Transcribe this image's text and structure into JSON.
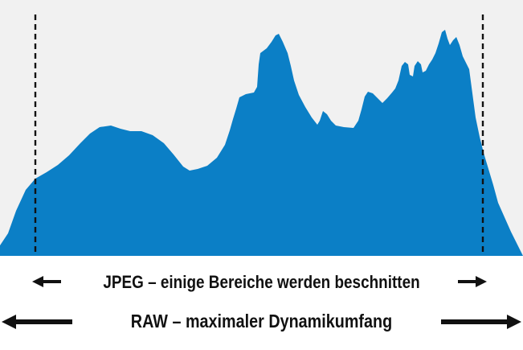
{
  "colors": {
    "histogram_fill": "#0b7fc6",
    "plot_background": "#f1f1f1",
    "marker_line": "#111111",
    "text": "#111111"
  },
  "labels": {
    "jpeg_range": "JPEG – einige Bereiche werden beschnitten",
    "raw_range": "RAW – maximaler Dynamikumfang"
  },
  "icons": {
    "jpeg_left": "arrow-left-icon",
    "jpeg_right": "arrow-right-icon",
    "raw_left": "arrow-left-icon",
    "raw_right": "arrow-right-icon"
  }
}
